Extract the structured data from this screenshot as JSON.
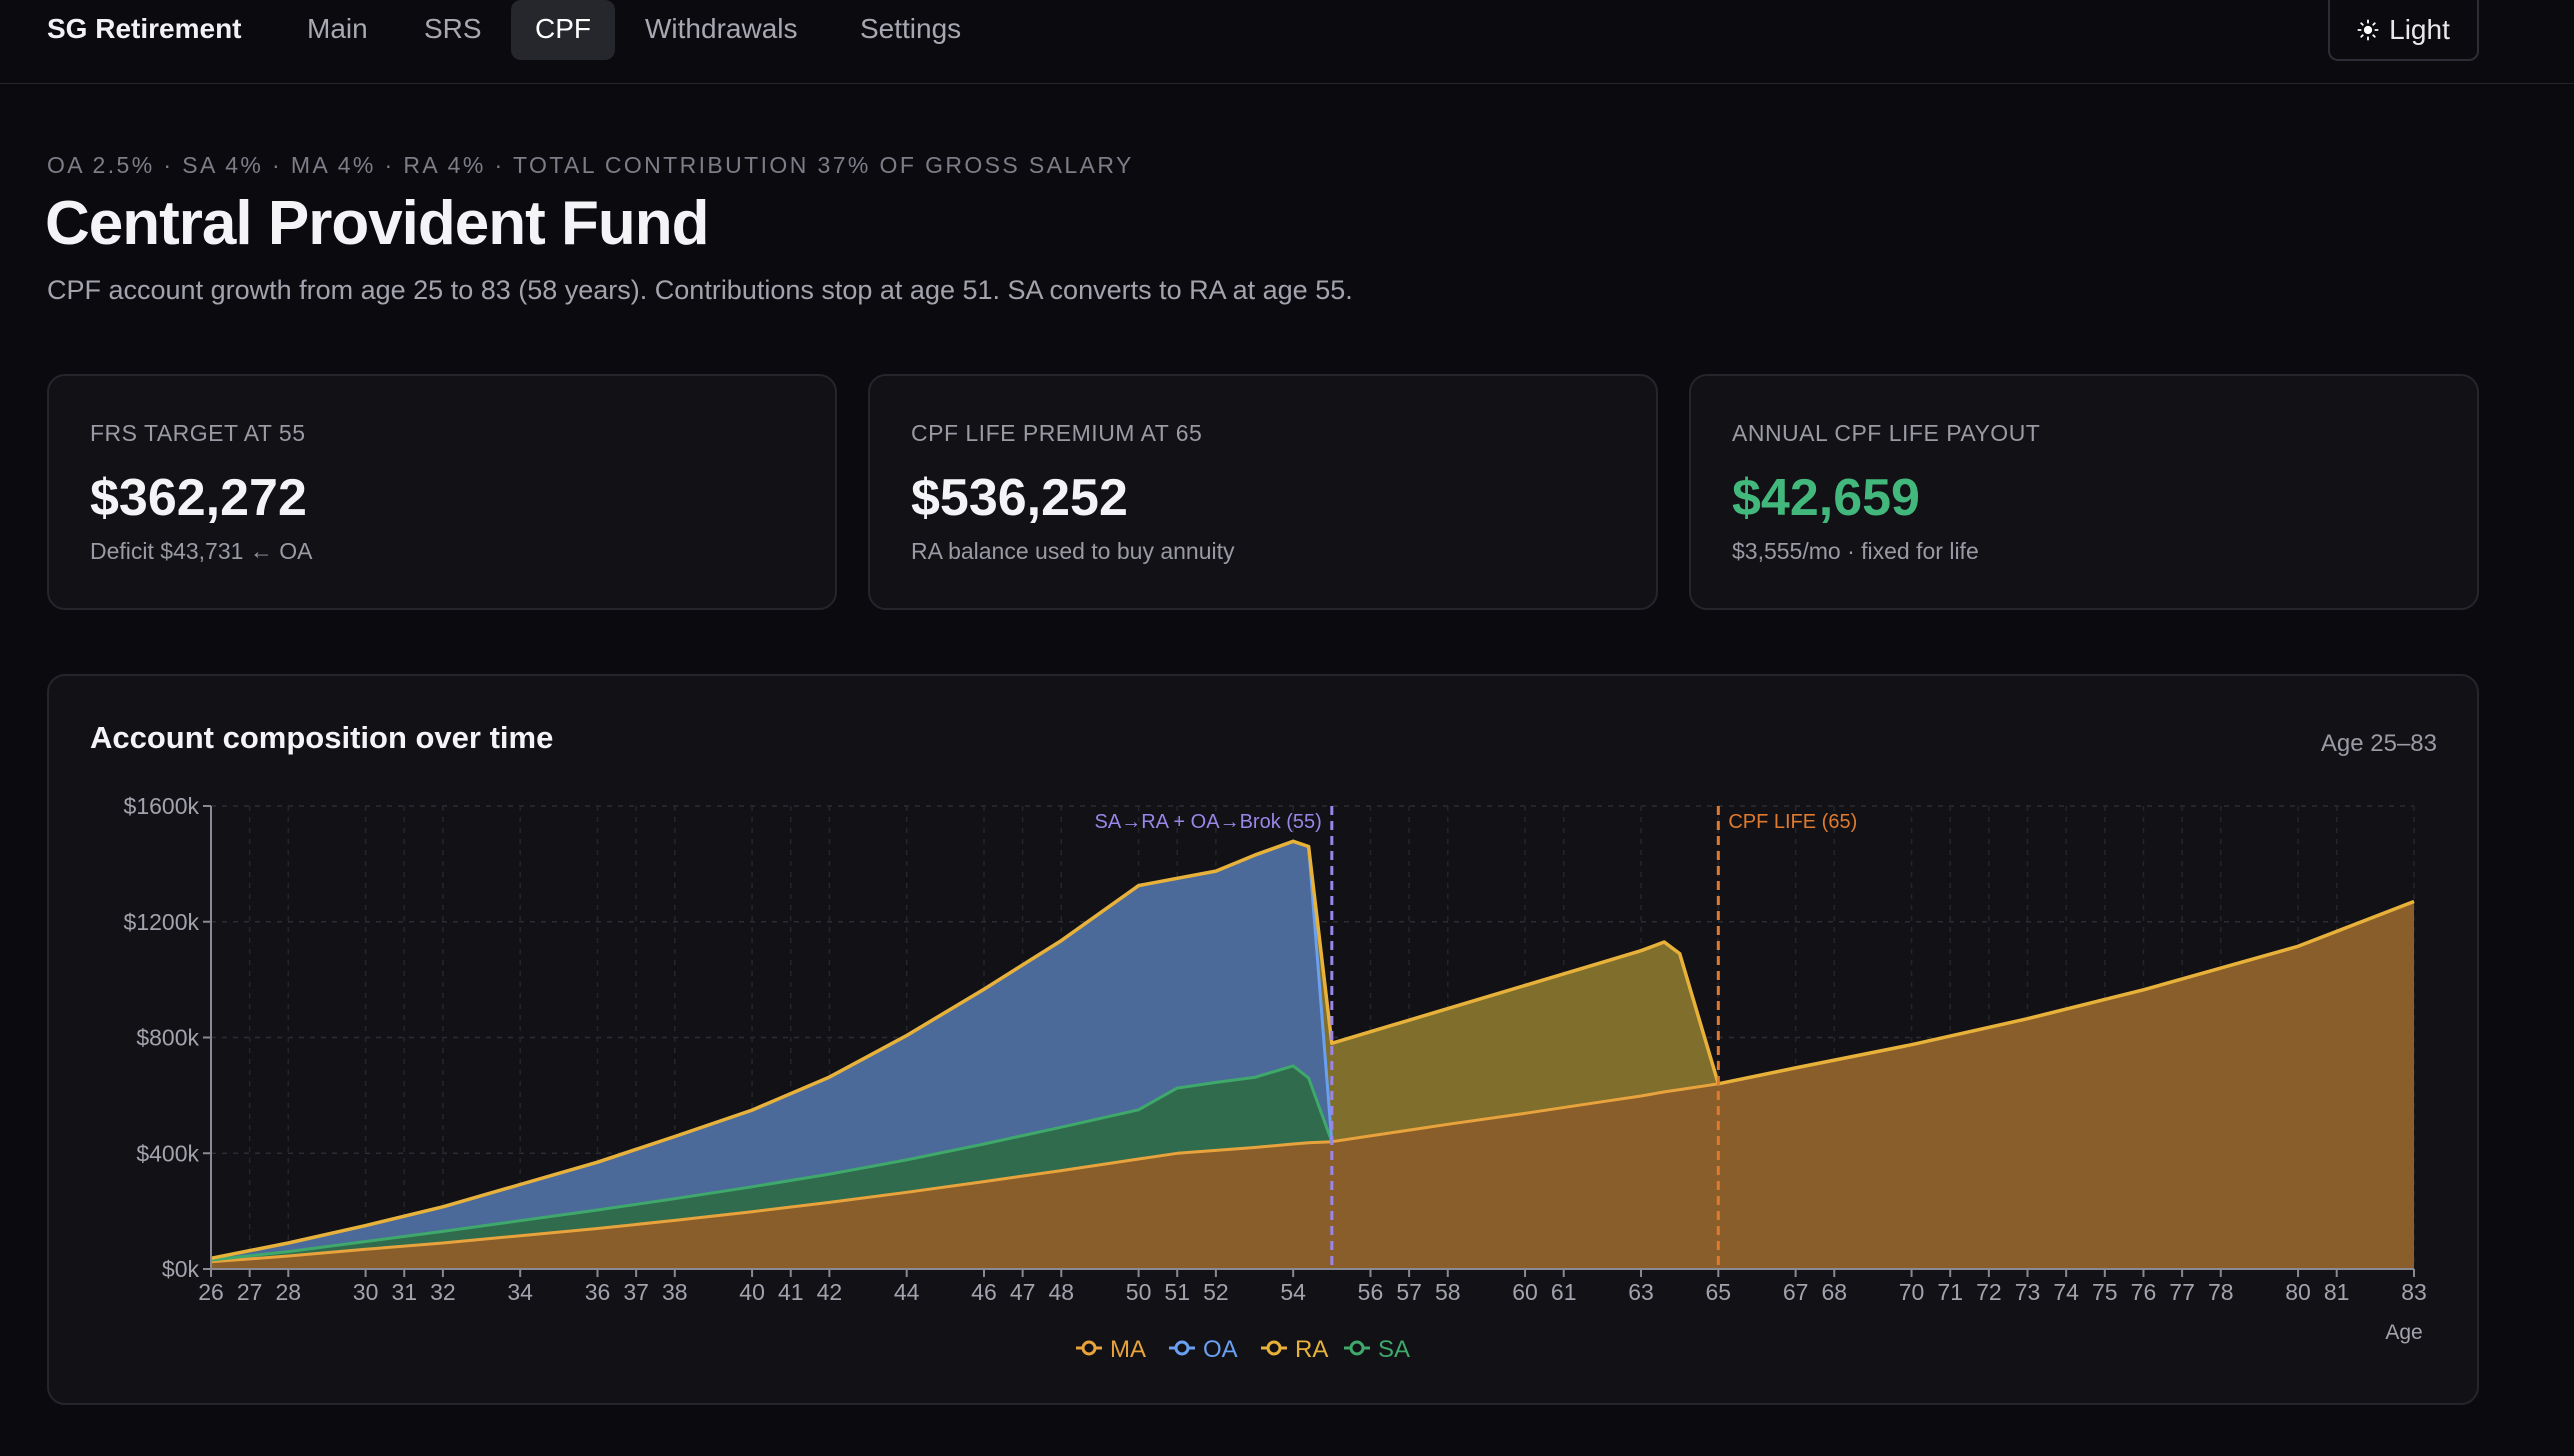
{
  "app": {
    "title": "SG Retirement"
  },
  "nav": {
    "items": [
      {
        "label": "Main",
        "active": false
      },
      {
        "label": "SRS",
        "active": false
      },
      {
        "label": "CPF",
        "active": true
      },
      {
        "label": "Withdrawals",
        "active": false
      },
      {
        "label": "Settings",
        "active": false
      }
    ]
  },
  "theme_toggle": {
    "label": "Light",
    "icon": "sun-icon"
  },
  "header": {
    "eyebrow": "OA 2.5% · SA 4% · MA 4% · RA 4% · TOTAL CONTRIBUTION 37% OF GROSS SALARY",
    "title": "Central Provident Fund",
    "subtitle": "CPF account growth from age 25 to 83 (58 years). Contributions stop at age 51. SA converts to RA at age 55."
  },
  "cards": [
    {
      "label": "FRS TARGET AT 55",
      "value": "$362,272",
      "note": "Deficit $43,731 ← OA",
      "value_color": "#f4f4f7"
    },
    {
      "label": "CPF LIFE PREMIUM AT 65",
      "value": "$536,252",
      "note": "RA balance used to buy annuity",
      "value_color": "#f4f4f7"
    },
    {
      "label": "ANNUAL CPF LIFE PAYOUT",
      "value": "$42,659",
      "note": "$3,555/mo · fixed for life",
      "value_color": "#43b87c"
    }
  ],
  "chart": {
    "title": "Account composition over time",
    "range_label": "Age 25–83"
  },
  "chart_data": {
    "type": "area",
    "stacked": true,
    "xlabel": "Age",
    "ylabel": "",
    "ylim": [
      0,
      1600
    ],
    "xlim": [
      26,
      83
    ],
    "y_ticks": [
      {
        "value": 0,
        "label": "$0k"
      },
      {
        "value": 400,
        "label": "$400k"
      },
      {
        "value": 800,
        "label": "$800k"
      },
      {
        "value": 1200,
        "label": "$1200k"
      },
      {
        "value": 1600,
        "label": "$1600k"
      }
    ],
    "x_ticks": [
      26,
      27,
      28,
      30,
      31,
      32,
      34,
      36,
      37,
      38,
      40,
      41,
      42,
      44,
      46,
      47,
      48,
      50,
      51,
      52,
      54,
      56,
      57,
      58,
      60,
      61,
      63,
      65,
      67,
      68,
      70,
      71,
      72,
      73,
      74,
      75,
      76,
      77,
      78,
      80,
      81,
      83
    ],
    "grid": true,
    "legend_position": "bottom-center",
    "annotations": [
      {
        "x": 55,
        "label": "SA→RA + OA→Brok (55)",
        "color": "#9a86e8"
      },
      {
        "x": 65,
        "label": "CPF LIFE (65)",
        "color": "#e07a2e"
      }
    ],
    "x": [
      26,
      28,
      30,
      32,
      34,
      36,
      38,
      40,
      42,
      44,
      46,
      48,
      50,
      51,
      52,
      53,
      54,
      54.4,
      55,
      56,
      58,
      60,
      62,
      63,
      63.6,
      64,
      65,
      67,
      70,
      73,
      76,
      80,
      83
    ],
    "series": [
      {
        "name": "MA",
        "color": "#e8a33c",
        "values": [
          25,
          45,
          68,
          90,
          115,
          140,
          168,
          198,
          230,
          265,
          302,
          340,
          380,
          400,
          410,
          420,
          432,
          436,
          440,
          460,
          500,
          538,
          578,
          598,
          612,
          620,
          640,
          695,
          775,
          865,
          965,
          1115,
          1270
        ]
      },
      {
        "name": "SA",
        "color": "#3fa86b",
        "values": [
          6,
          15,
          27,
          40,
          52,
          64,
          75,
          86,
          98,
          112,
          130,
          150,
          170,
          225,
          235,
          242,
          270,
          224,
          0,
          0,
          0,
          0,
          0,
          0,
          0,
          0,
          0,
          0,
          0,
          0,
          0,
          0,
          0
        ]
      },
      {
        "name": "OA",
        "color": "#6aa0f0",
        "values": [
          6,
          30,
          55,
          85,
          125,
          165,
          215,
          265,
          335,
          430,
          535,
          645,
          775,
          725,
          730,
          768,
          776,
          800,
          0,
          0,
          0,
          0,
          0,
          0,
          0,
          0,
          0,
          0,
          0,
          0,
          0,
          0,
          0
        ]
      },
      {
        "name": "RA",
        "color": "#e8b23a",
        "values": [
          0,
          0,
          0,
          0,
          0,
          0,
          0,
          0,
          0,
          0,
          0,
          0,
          0,
          0,
          0,
          0,
          0,
          0,
          340,
          360,
          400,
          442,
          482,
          502,
          518,
          470,
          0,
          0,
          0,
          0,
          0,
          0,
          0
        ]
      }
    ]
  }
}
